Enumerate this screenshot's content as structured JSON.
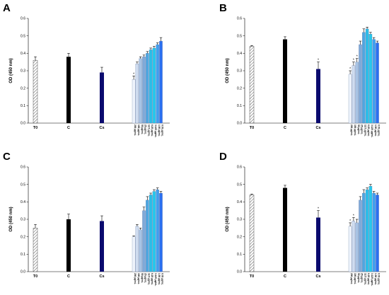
{
  "chart_data": [
    {
      "panel": "A",
      "type": "bar",
      "ylabel": "OD (450 nm)",
      "ylim": [
        0,
        0.6
      ],
      "yticks": [
        "0.0",
        "0.1",
        "0.2",
        "0.3",
        "0.4",
        "0.5",
        "0.6"
      ],
      "controls": [
        {
          "label": "T0",
          "value": 0.36,
          "error": 0.02,
          "style": "hatched"
        },
        {
          "label": "C",
          "value": 0.38,
          "error": 0.02,
          "style": "black"
        },
        {
          "label": "Cs",
          "value": 0.29,
          "error": 0.03,
          "style": "navy"
        }
      ],
      "concentration_labels": [
        "200 µg/mL",
        "100 µg/mL",
        "50 µg/mL",
        "25 µg/mL",
        "12.5 µg/mL",
        "6.25 µg/mL",
        "3.125 µg/mL",
        "1.56 µg/mL",
        "0.78 µg/mL"
      ],
      "values": [
        0.25,
        0.34,
        0.37,
        0.38,
        0.4,
        0.42,
        0.43,
        0.45,
        0.47
      ],
      "errors": [
        0.02,
        0.01,
        0.01,
        0.01,
        0.01,
        0.01,
        0.01,
        0.01,
        0.02
      ],
      "significance": [
        true,
        false,
        false,
        false,
        false,
        false,
        false,
        false,
        false
      ],
      "cs_significant": false
    },
    {
      "panel": "B",
      "type": "bar",
      "ylabel": "OD (450 nm)",
      "ylim": [
        0,
        0.6
      ],
      "yticks": [
        "0.0",
        "0.1",
        "0.2",
        "0.3",
        "0.4",
        "0.5",
        "0.6"
      ],
      "controls": [
        {
          "label": "T0",
          "value": 0.44,
          "error": 0.005,
          "style": "hatched"
        },
        {
          "label": "C",
          "value": 0.48,
          "error": 0.015,
          "style": "black"
        },
        {
          "label": "Cs",
          "value": 0.31,
          "error": 0.04,
          "style": "navy"
        }
      ],
      "concentration_labels": [
        "200 µg/mL",
        "100 µg/mL",
        "50 µg/mL",
        "25 µg/mL",
        "12.5 µg/mL",
        "6.25 µg/mL",
        "3.125 µg/mL",
        "1.56 µg/mL",
        "0.78 µg/mL"
      ],
      "values": [
        0.28,
        0.33,
        0.35,
        0.45,
        0.52,
        0.54,
        0.51,
        0.48,
        0.46
      ],
      "errors": [
        0.02,
        0.02,
        0.02,
        0.02,
        0.02,
        0.01,
        0.01,
        0.01,
        0.01
      ],
      "significance": [
        true,
        true,
        true,
        false,
        false,
        false,
        false,
        false,
        false
      ],
      "cs_significant": true
    },
    {
      "panel": "C",
      "type": "bar",
      "ylabel": "OD (450 nm)",
      "ylim": [
        0,
        0.6
      ],
      "yticks": [
        "0.0",
        "0.1",
        "0.2",
        "0.3",
        "0.4",
        "0.5",
        "0.6"
      ],
      "controls": [
        {
          "label": "T0",
          "value": 0.25,
          "error": 0.02,
          "style": "hatched"
        },
        {
          "label": "C",
          "value": 0.3,
          "error": 0.03,
          "style": "black"
        },
        {
          "label": "Cs",
          "value": 0.29,
          "error": 0.03,
          "style": "navy"
        }
      ],
      "concentration_labels": [
        "200 µg/mL",
        "100 µg/mL",
        "50 µg/mL",
        "25 µg/mL",
        "12.5 µg/mL",
        "6.25 µg/mL",
        "3.125 µg/mL",
        "1.56 µg/mL",
        "0.78 µg/mL"
      ],
      "values": [
        0.2,
        0.26,
        0.24,
        0.35,
        0.41,
        0.44,
        0.46,
        0.47,
        0.45
      ],
      "errors": [
        0.005,
        0.01,
        0.01,
        0.02,
        0.02,
        0.01,
        0.01,
        0.01,
        0.01
      ],
      "significance": [
        false,
        false,
        false,
        false,
        false,
        false,
        false,
        false,
        false
      ],
      "cs_significant": false
    },
    {
      "panel": "D",
      "type": "bar",
      "ylabel": "OD (450 nm)",
      "ylim": [
        0,
        0.6
      ],
      "yticks": [
        "0.0",
        "0.1",
        "0.2",
        "0.3",
        "0.4",
        "0.5",
        "0.6"
      ],
      "controls": [
        {
          "label": "T0",
          "value": 0.44,
          "error": 0.005,
          "style": "hatched"
        },
        {
          "label": "C",
          "value": 0.48,
          "error": 0.015,
          "style": "black"
        },
        {
          "label": "Cs",
          "value": 0.31,
          "error": 0.04,
          "style": "navy"
        }
      ],
      "concentration_labels": [
        "200 µg/mL",
        "100 µg/mL",
        "50 µg/mL",
        "25 µg/mL",
        "12.5 µg/mL",
        "6.25 µg/mL",
        "3.125 µg/mL",
        "1.56 µg/mL",
        "0.78 µg/mL"
      ],
      "values": [
        0.26,
        0.29,
        0.28,
        0.41,
        0.45,
        0.47,
        0.49,
        0.45,
        0.44
      ],
      "errors": [
        0.02,
        0.02,
        0.02,
        0.02,
        0.02,
        0.01,
        0.01,
        0.01,
        0.01
      ],
      "significance": [
        true,
        true,
        false,
        false,
        false,
        false,
        false,
        false,
        false
      ],
      "cs_significant": true
    }
  ],
  "colors": {
    "black": "#000000",
    "navy": "#0a0a6e",
    "gradient": [
      "#eef3fb",
      "#cfdcef",
      "#a8c4e4",
      "#7fa9d8",
      "#4fa6e0",
      "#2dbde8",
      "#27c8ec",
      "#3fa0f0",
      "#2a6ff0"
    ]
  },
  "significance_marker": "*"
}
